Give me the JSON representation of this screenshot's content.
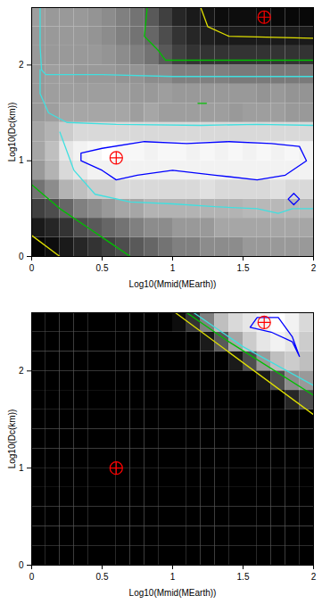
{
  "chart_data": [
    {
      "type": "heatmap",
      "x_label": "Log10(Mmid(MEarth))",
      "y_label": "Log10(Dc(km))",
      "xlim": [
        0,
        2
      ],
      "ylim": [
        0,
        2.6
      ],
      "xticks": [
        0,
        0.5,
        1,
        1.5,
        2
      ],
      "yticks": [
        0,
        1,
        2
      ],
      "zlim": [
        0,
        1
      ],
      "x_edges": [
        0,
        0.1,
        0.2,
        0.3,
        0.4,
        0.5,
        0.6,
        0.7,
        0.8,
        0.9,
        1,
        1.1,
        1.2,
        1.3,
        1.4,
        1.5,
        1.6,
        1.7,
        1.8,
        1.9,
        2
      ],
      "y_edges": [
        0,
        0.2,
        0.4,
        0.6,
        0.8,
        1,
        1.2,
        1.4,
        1.6,
        1.8,
        2,
        2.2,
        2.4,
        2.6
      ],
      "cells": [
        [
          0.02,
          0.05,
          0.1,
          0.15,
          0.2,
          0.25,
          0.3,
          0.35,
          0.4,
          0.45,
          0.5,
          0.5,
          0.55,
          0.55,
          0.55,
          0.6,
          0.6,
          0.6,
          0.6,
          0.6
        ],
        [
          0.1,
          0.15,
          0.2,
          0.3,
          0.35,
          0.4,
          0.45,
          0.5,
          0.55,
          0.55,
          0.6,
          0.6,
          0.6,
          0.65,
          0.65,
          0.65,
          0.65,
          0.65,
          0.65,
          0.65
        ],
        [
          0.25,
          0.3,
          0.4,
          0.5,
          0.55,
          0.6,
          0.65,
          0.65,
          0.7,
          0.7,
          0.7,
          0.7,
          0.7,
          0.7,
          0.7,
          0.72,
          0.72,
          0.72,
          0.72,
          0.72
        ],
        [
          0.45,
          0.55,
          0.7,
          0.75,
          0.8,
          0.8,
          0.85,
          0.85,
          0.85,
          0.85,
          0.85,
          0.85,
          0.88,
          0.85,
          0.85,
          0.85,
          0.85,
          0.88,
          0.85,
          0.85
        ],
        [
          0.6,
          0.7,
          0.85,
          0.9,
          0.95,
          0.95,
          0.95,
          0.95,
          0.95,
          0.95,
          0.95,
          0.95,
          0.95,
          0.95,
          0.95,
          0.95,
          0.95,
          0.95,
          0.95,
          0.95
        ],
        [
          0.65,
          0.75,
          0.9,
          0.95,
          0.97,
          1,
          0.97,
          0.97,
          0.95,
          0.97,
          0.97,
          0.95,
          0.97,
          0.95,
          0.97,
          0.95,
          0.97,
          0.95,
          0.97,
          0.95
        ],
        [
          0.65,
          0.7,
          0.8,
          0.85,
          0.85,
          0.85,
          0.85,
          0.85,
          0.85,
          0.85,
          0.85,
          0.85,
          0.85,
          0.85,
          0.85,
          0.85,
          0.85,
          0.85,
          0.85,
          0.85
        ],
        [
          0.6,
          0.62,
          0.65,
          0.65,
          0.65,
          0.65,
          0.65,
          0.62,
          0.65,
          0.62,
          0.62,
          0.62,
          0.62,
          0.62,
          0.6,
          0.62,
          0.62,
          0.62,
          0.6,
          0.6
        ],
        [
          0.6,
          0.62,
          0.62,
          0.62,
          0.62,
          0.62,
          0.62,
          0.6,
          0.6,
          0.62,
          0.6,
          0.6,
          0.6,
          0.6,
          0.6,
          0.6,
          0.58,
          0.6,
          0.58,
          0.58
        ],
        [
          0.6,
          0.62,
          0.62,
          0.6,
          0.6,
          0.6,
          0.58,
          0.58,
          0.55,
          0.55,
          0.5,
          0.5,
          0.5,
          0.5,
          0.48,
          0.48,
          0.48,
          0.48,
          0.48,
          0.48
        ],
        [
          0.6,
          0.6,
          0.6,
          0.6,
          0.6,
          0.58,
          0.55,
          0.5,
          0.45,
          0.35,
          0.25,
          0.2,
          0.2,
          0.2,
          0.2,
          0.2,
          0.2,
          0.2,
          0.2,
          0.2
        ],
        [
          0.6,
          0.6,
          0.6,
          0.6,
          0.58,
          0.55,
          0.5,
          0.45,
          0.4,
          0.3,
          0.2,
          0.15,
          0.12,
          0.1,
          0.1,
          0.1,
          0.1,
          0.1,
          0.1,
          0.1
        ],
        [
          0.62,
          0.6,
          0.6,
          0.6,
          0.58,
          0.55,
          0.5,
          0.45,
          0.35,
          0.25,
          0.15,
          0.1,
          0.08,
          0.05,
          0.05,
          0.05,
          0.03,
          0.03,
          0.03,
          0.03
        ]
      ],
      "contours": [
        {
          "color": "#40e0e0",
          "points": [
            [
              0.06,
              2.6
            ],
            [
              0.06,
              2.2
            ],
            [
              0.07,
              1.95
            ],
            [
              0.1,
              1.9
            ],
            [
              0.5,
              1.9
            ],
            [
              1.0,
              1.88
            ],
            [
              1.5,
              1.88
            ],
            [
              2,
              1.88
            ]
          ]
        },
        {
          "color": "#40e0e0",
          "points": [
            [
              0.06,
              1.95
            ],
            [
              0.06,
              1.7
            ],
            [
              0.12,
              1.5
            ],
            [
              0.25,
              1.4
            ],
            [
              0.6,
              1.38
            ],
            [
              1.2,
              1.37
            ],
            [
              1.6,
              1.38
            ],
            [
              2,
              1.37
            ]
          ]
        },
        {
          "color": "#40e0e0",
          "points": [
            [
              0.2,
              1.3
            ],
            [
              0.3,
              0.9
            ],
            [
              0.45,
              0.65
            ],
            [
              0.7,
              0.57
            ],
            [
              1.0,
              0.55
            ],
            [
              1.3,
              0.52
            ],
            [
              1.6,
              0.5
            ],
            [
              1.75,
              0.45
            ],
            [
              1.85,
              0.5
            ],
            [
              2,
              0.5
            ]
          ]
        },
        {
          "color": "#0000ff",
          "points": [
            [
              0.35,
              1.08
            ],
            [
              0.5,
              1.13
            ],
            [
              0.8,
              1.2
            ],
            [
              1.1,
              1.18
            ],
            [
              1.4,
              1.2
            ],
            [
              1.7,
              1.18
            ],
            [
              1.9,
              1.15
            ],
            [
              1.95,
              1.0
            ],
            [
              1.8,
              0.85
            ],
            [
              1.6,
              0.8
            ],
            [
              1.3,
              0.85
            ],
            [
              1.0,
              0.9
            ],
            [
              0.75,
              0.85
            ],
            [
              0.6,
              0.8
            ],
            [
              0.5,
              0.9
            ],
            [
              0.35,
              1.0
            ],
            [
              0.35,
              1.08
            ]
          ]
        },
        {
          "color": "#0000ff",
          "points": [
            [
              1.82,
              0.6
            ],
            [
              1.86,
              0.66
            ],
            [
              1.9,
              0.6
            ],
            [
              1.86,
              0.54
            ],
            [
              1.82,
              0.6
            ]
          ]
        },
        {
          "color": "#00c000",
          "points": [
            [
              0.82,
              2.6
            ],
            [
              0.8,
              2.3
            ],
            [
              0.9,
              2.15
            ],
            [
              0.95,
              2.05
            ],
            [
              1.2,
              2.05
            ],
            [
              2,
              2.05
            ]
          ]
        },
        {
          "color": "#00c000",
          "points": [
            [
              0,
              0.75
            ],
            [
              0.2,
              0.5
            ],
            [
              0.4,
              0.3
            ],
            [
              0.55,
              0.15
            ],
            [
              0.7,
              0
            ]
          ]
        },
        {
          "color": "#00c000",
          "points": [
            [
              1.18,
              1.6
            ],
            [
              1.24,
              1.6
            ]
          ]
        },
        {
          "color": "#e0e000",
          "points": [
            [
              1.2,
              2.6
            ],
            [
              1.25,
              2.4
            ],
            [
              1.4,
              2.3
            ],
            [
              2,
              2.28
            ]
          ]
        },
        {
          "color": "#e0e000",
          "points": [
            [
              0,
              0.22
            ],
            [
              0.2,
              0
            ]
          ]
        }
      ],
      "markers": {
        "x": [
          0.6,
          1.65
        ],
        "y": [
          1.03,
          2.5
        ],
        "color": "#ff0000",
        "marker": "circle_plus"
      }
    },
    {
      "type": "heatmap",
      "x_label": "Log10(Mmid(MEarth))",
      "y_label": "Log10(Dc(km))",
      "xlim": [
        0,
        2
      ],
      "ylim": [
        0,
        2.6
      ],
      "xticks": [
        0,
        0.5,
        1,
        1.5,
        2
      ],
      "yticks": [
        0,
        1,
        2
      ],
      "zlim": [
        0,
        1
      ],
      "x_edges": [
        0,
        0.1,
        0.2,
        0.3,
        0.4,
        0.5,
        0.6,
        0.7,
        0.8,
        0.9,
        1,
        1.1,
        1.2,
        1.3,
        1.4,
        1.5,
        1.6,
        1.7,
        1.8,
        1.9,
        2
      ],
      "y_edges": [
        0,
        0.2,
        0.4,
        0.6,
        0.8,
        1,
        1.2,
        1.4,
        1.6,
        1.8,
        2,
        2.2,
        2.4,
        2.6
      ],
      "cells": [
        [
          0,
          0,
          0,
          0,
          0,
          0,
          0,
          0,
          0,
          0,
          0,
          0,
          0,
          0,
          0,
          0,
          0,
          0,
          0,
          0
        ],
        [
          0,
          0,
          0,
          0,
          0,
          0,
          0,
          0,
          0,
          0,
          0,
          0,
          0,
          0,
          0,
          0,
          0,
          0,
          0,
          0
        ],
        [
          0,
          0,
          0,
          0,
          0,
          0,
          0,
          0,
          0,
          0,
          0,
          0,
          0,
          0,
          0,
          0,
          0,
          0,
          0,
          0
        ],
        [
          0,
          0,
          0,
          0,
          0,
          0,
          0,
          0,
          0,
          0,
          0,
          0,
          0,
          0,
          0,
          0,
          0,
          0,
          0,
          0
        ],
        [
          0,
          0,
          0,
          0,
          0,
          0,
          0,
          0,
          0,
          0,
          0,
          0,
          0,
          0,
          0,
          0,
          0,
          0,
          0,
          0
        ],
        [
          0,
          0,
          0,
          0,
          0,
          0,
          0,
          0,
          0,
          0,
          0,
          0,
          0,
          0,
          0,
          0,
          0,
          0,
          0,
          0
        ],
        [
          0,
          0,
          0,
          0,
          0,
          0,
          0,
          0,
          0,
          0,
          0,
          0,
          0,
          0,
          0,
          0,
          0,
          0,
          0,
          0
        ],
        [
          0,
          0,
          0,
          0,
          0,
          0,
          0,
          0,
          0,
          0,
          0,
          0,
          0,
          0,
          0,
          0,
          0,
          0,
          0,
          0
        ],
        [
          0,
          0,
          0,
          0,
          0,
          0,
          0,
          0,
          0,
          0,
          0,
          0,
          0,
          0,
          0,
          0,
          0,
          0,
          0.15,
          0.3
        ],
        [
          0,
          0,
          0,
          0,
          0,
          0,
          0,
          0,
          0,
          0,
          0,
          0,
          0,
          0,
          0,
          0,
          0.1,
          0.3,
          0.55,
          0.6
        ],
        [
          0,
          0,
          0,
          0,
          0,
          0,
          0,
          0,
          0,
          0,
          0,
          0,
          0,
          0,
          0.1,
          0.3,
          0.6,
          0.75,
          0.8,
          0.75
        ],
        [
          0,
          0,
          0,
          0,
          0,
          0,
          0,
          0,
          0,
          0,
          0,
          0,
          0.1,
          0.35,
          0.65,
          0.8,
          0.9,
          0.95,
          0.9,
          0.8
        ],
        [
          0,
          0,
          0,
          0,
          0,
          0,
          0,
          0,
          0,
          0,
          0.05,
          0.2,
          0.5,
          0.75,
          0.85,
          0.9,
          0.95,
          1,
          0.95,
          0.85
        ]
      ],
      "contours": [
        {
          "color": "#e0e000",
          "points": [
            [
              1.02,
              2.6
            ],
            [
              2,
              1.55
            ]
          ]
        },
        {
          "color": "#00c000",
          "points": [
            [
              1.1,
              2.6
            ],
            [
              1.4,
              2.3
            ],
            [
              2,
              1.75
            ]
          ]
        },
        {
          "color": "#40e0e0",
          "points": [
            [
              1.15,
              2.6
            ],
            [
              1.5,
              2.25
            ],
            [
              2,
              1.85
            ]
          ]
        },
        {
          "color": "#0000ff",
          "points": [
            [
              1.55,
              2.45
            ],
            [
              1.7,
              2.4
            ],
            [
              1.85,
              2.3
            ],
            [
              1.9,
              2.15
            ],
            [
              1.85,
              2.35
            ],
            [
              1.75,
              2.55
            ],
            [
              1.6,
              2.55
            ],
            [
              1.55,
              2.45
            ]
          ]
        }
      ],
      "markers": {
        "x": [
          0.6,
          1.65
        ],
        "y": [
          1.0,
          2.5
        ],
        "color": "#ff0000",
        "marker": "circle_plus"
      }
    }
  ]
}
